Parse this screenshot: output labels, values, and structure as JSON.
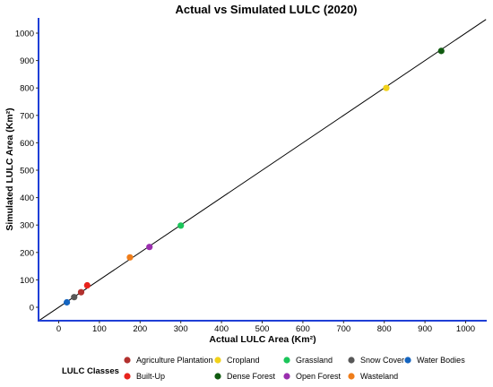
{
  "chart_data": {
    "type": "scatter",
    "title": "Actual vs Simulated LULC (2020)",
    "xlabel": "Actual LULC Area (Km²)",
    "ylabel": "Simulated LULC Area (Km²)",
    "xlim": [
      -50,
      1050
    ],
    "ylim": [
      -50,
      1050
    ],
    "xticks": [
      0,
      100,
      200,
      300,
      400,
      500,
      600,
      700,
      800,
      900,
      1000
    ],
    "yticks": [
      0,
      100,
      200,
      300,
      400,
      500,
      600,
      700,
      800,
      900,
      1000
    ],
    "reference_line": "y = x",
    "grid": false,
    "legend": {
      "title": "LULC Classes",
      "position": "bottom"
    },
    "series": [
      {
        "name": "Agriculture Plantation",
        "color": "#b2312e",
        "x": 55,
        "y": 55
      },
      {
        "name": "Built-Up",
        "color": "#e8231c",
        "x": 70,
        "y": 80
      },
      {
        "name": "Cropland",
        "color": "#f2d21a",
        "x": 805,
        "y": 800
      },
      {
        "name": "Dense Forest",
        "color": "#105b10",
        "x": 940,
        "y": 935
      },
      {
        "name": "Grassland",
        "color": "#1bc55a",
        "x": 300,
        "y": 298
      },
      {
        "name": "Open Forest",
        "color": "#9a2fae",
        "x": 223,
        "y": 220
      },
      {
        "name": "Snow Cover",
        "color": "#585858",
        "x": 38,
        "y": 37
      },
      {
        "name": "Wasteland",
        "color": "#ef7d1a",
        "x": 175,
        "y": 182
      },
      {
        "name": "Water Bodies",
        "color": "#1565c0",
        "x": 20,
        "y": 18
      }
    ]
  }
}
